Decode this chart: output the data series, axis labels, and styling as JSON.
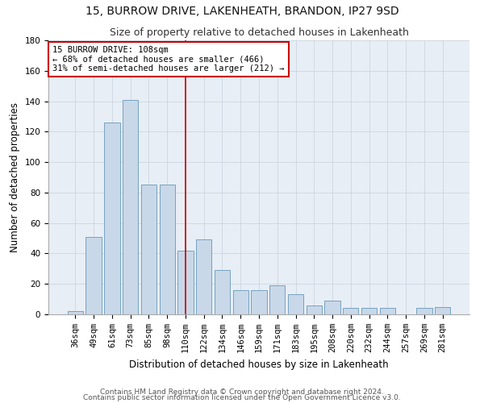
{
  "title1": "15, BURROW DRIVE, LAKENHEATH, BRANDON, IP27 9SD",
  "title2": "Size of property relative to detached houses in Lakenheath",
  "xlabel": "Distribution of detached houses by size in Lakenheath",
  "ylabel": "Number of detached properties",
  "categories": [
    "36sqm",
    "49sqm",
    "61sqm",
    "73sqm",
    "85sqm",
    "98sqm",
    "110sqm",
    "122sqm",
    "134sqm",
    "146sqm",
    "159sqm",
    "171sqm",
    "183sqm",
    "195sqm",
    "208sqm",
    "220sqm",
    "232sqm",
    "244sqm",
    "257sqm",
    "269sqm",
    "281sqm"
  ],
  "values": [
    2,
    51,
    126,
    141,
    85,
    85,
    42,
    49,
    29,
    16,
    16,
    19,
    13,
    6,
    9,
    4,
    4,
    4,
    0,
    4,
    5
  ],
  "bar_color": "#c8d8e8",
  "bar_edge_color": "#6699bb",
  "vline_x": 6.0,
  "vline_color": "#cc0000",
  "annotation_line1": "15 BURROW DRIVE: 108sqm",
  "annotation_line2": "← 68% of detached houses are smaller (466)",
  "annotation_line3": "31% of semi-detached houses are larger (212) →",
  "annotation_box_color": "#ffffff",
  "annotation_box_edge": "#cc0000",
  "ylim": [
    0,
    180
  ],
  "yticks": [
    0,
    20,
    40,
    60,
    80,
    100,
    120,
    140,
    160,
    180
  ],
  "grid_color": "#ccd5e0",
  "background_color": "#e8eef5",
  "footer1": "Contains HM Land Registry data © Crown copyright and database right 2024.",
  "footer2": "Contains public sector information licensed under the Open Government Licence v3.0.",
  "title1_fontsize": 10,
  "title2_fontsize": 9,
  "xlabel_fontsize": 8.5,
  "ylabel_fontsize": 8.5,
  "tick_fontsize": 7.5,
  "annotation_fontsize": 7.5,
  "footer_fontsize": 6.5
}
